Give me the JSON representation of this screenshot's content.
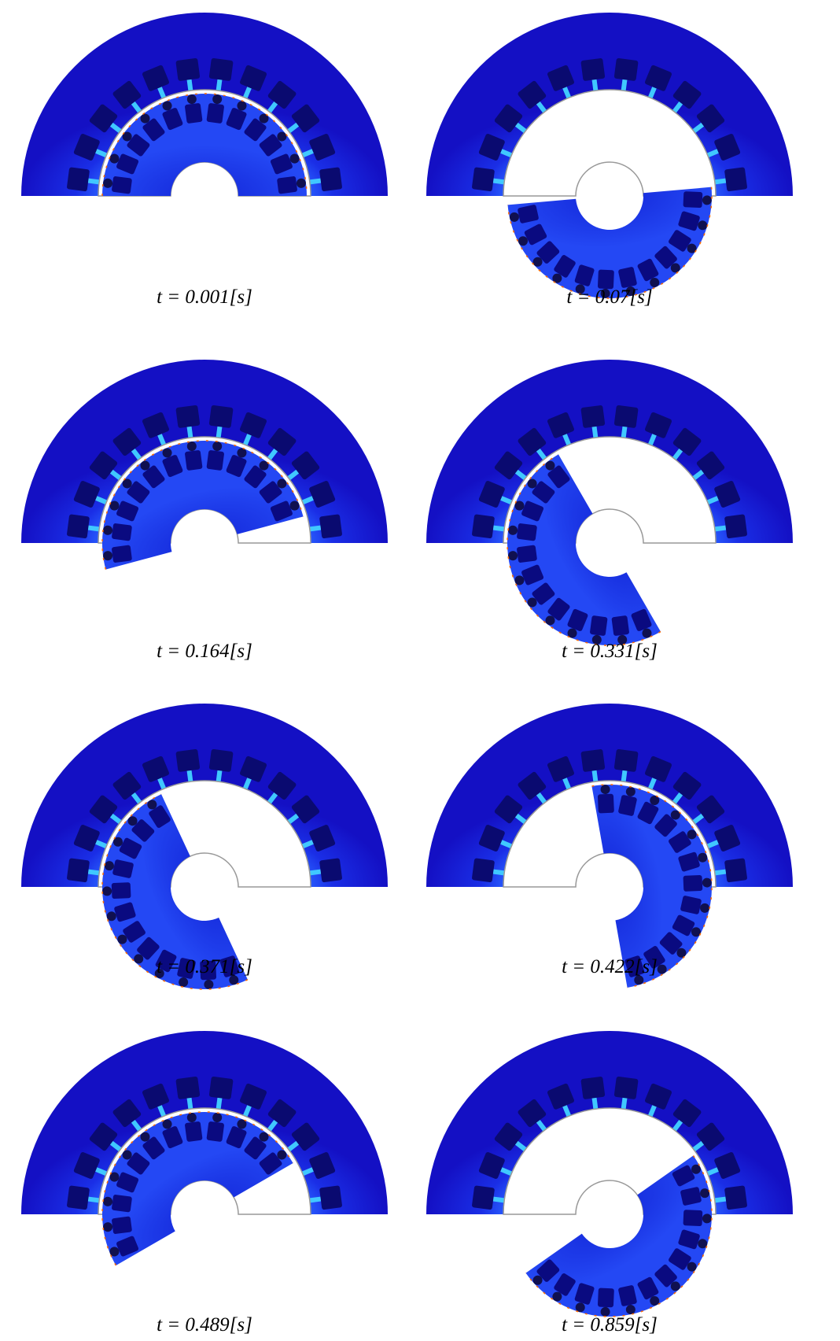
{
  "panels": [
    {
      "caption": "t = 0.001[s]"
    },
    {
      "caption": "t = 0.07[s]"
    },
    {
      "caption": "t = 0.164[s]"
    },
    {
      "caption": "t = 0.331[s]"
    },
    {
      "caption": "t = 0.371[s]"
    },
    {
      "caption": "t = 0.422[s]"
    },
    {
      "caption": "t = 0.489[s]"
    },
    {
      "caption": "t = 0.859[s]"
    }
  ]
}
